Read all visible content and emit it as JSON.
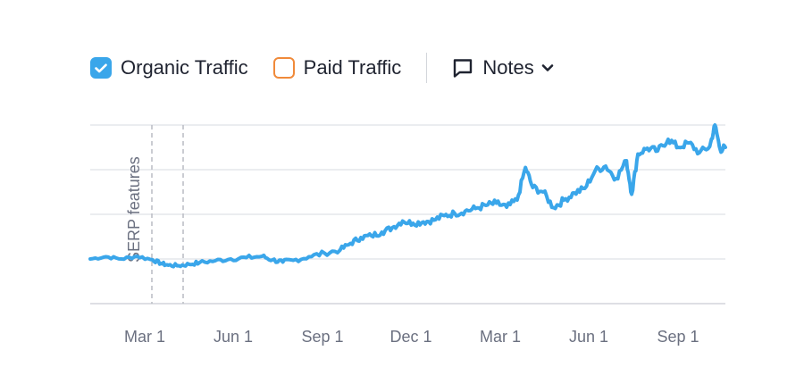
{
  "legend": {
    "organic_label": "Organic Traffic",
    "organic_checked": true,
    "paid_label": "Paid Traffic",
    "paid_checked": false,
    "notes_label": "Notes",
    "notes_icon": "comment-icon",
    "chevron_icon": "chevron-down-icon"
  },
  "colors": {
    "organic": "#3aa6ea",
    "paid": "#f08a3a",
    "grid": "#dfe2e8",
    "axis_text": "#6b7080",
    "annotation_line": "#b9bcc4"
  },
  "chart_data": {
    "type": "line",
    "x_tick_labels": [
      "Mar 1",
      "Jun 1",
      "Sep 1",
      "Dec 1",
      "Mar 1",
      "Jun 1",
      "Sep 1"
    ],
    "y_tick_labels": [],
    "grid": true,
    "annotation": {
      "label": "SERP features"
    },
    "series": [
      {
        "name": "Organic Traffic",
        "points": [
          [
            0.0,
            1.0
          ],
          [
            1.5,
            1.05
          ],
          [
            3.0,
            1.0
          ],
          [
            4.5,
            1.06
          ],
          [
            6.0,
            0.98
          ],
          [
            6.8,
            0.9
          ],
          [
            7.5,
            0.86
          ],
          [
            8.5,
            0.85
          ],
          [
            9.5,
            0.88
          ],
          [
            10.5,
            0.92
          ],
          [
            12.0,
            0.96
          ],
          [
            13.5,
            1.0
          ],
          [
            15.0,
            1.03
          ],
          [
            16.5,
            1.06
          ],
          [
            17.5,
            0.98
          ],
          [
            18.5,
            0.93
          ],
          [
            19.5,
            0.97
          ],
          [
            21.0,
            1.05
          ],
          [
            22.5,
            1.13
          ],
          [
            24.0,
            1.2
          ],
          [
            25.0,
            1.35
          ],
          [
            26.0,
            1.48
          ],
          [
            27.0,
            1.52
          ],
          [
            28.0,
            1.6
          ],
          [
            29.0,
            1.7
          ],
          [
            30.0,
            1.85
          ],
          [
            31.0,
            1.8
          ],
          [
            32.0,
            1.83
          ],
          [
            33.0,
            1.87
          ],
          [
            34.0,
            1.97
          ],
          [
            35.0,
            2.02
          ],
          [
            36.0,
            2.07
          ],
          [
            37.0,
            2.13
          ],
          [
            38.0,
            2.2
          ],
          [
            39.0,
            2.25
          ],
          [
            40.0,
            2.16
          ],
          [
            41.0,
            2.32
          ],
          [
            41.8,
            3.05
          ],
          [
            42.5,
            2.6
          ],
          [
            43.5,
            2.5
          ],
          [
            44.5,
            2.15
          ],
          [
            45.5,
            2.32
          ],
          [
            46.5,
            2.48
          ],
          [
            47.5,
            2.58
          ],
          [
            48.5,
            2.98
          ],
          [
            49.5,
            3.08
          ],
          [
            50.5,
            2.8
          ],
          [
            51.5,
            3.2
          ],
          [
            52.0,
            2.45
          ],
          [
            52.6,
            3.35
          ],
          [
            53.5,
            3.48
          ],
          [
            54.5,
            3.42
          ],
          [
            55.5,
            3.68
          ],
          [
            56.5,
            3.5
          ],
          [
            57.5,
            3.6
          ],
          [
            58.5,
            3.38
          ],
          [
            59.5,
            3.52
          ],
          [
            60.0,
            4.0
          ],
          [
            60.5,
            3.45
          ],
          [
            61.0,
            3.5
          ]
        ]
      }
    ],
    "xlim": [
      0,
      61
    ],
    "ylim": [
      0,
      4
    ]
  }
}
